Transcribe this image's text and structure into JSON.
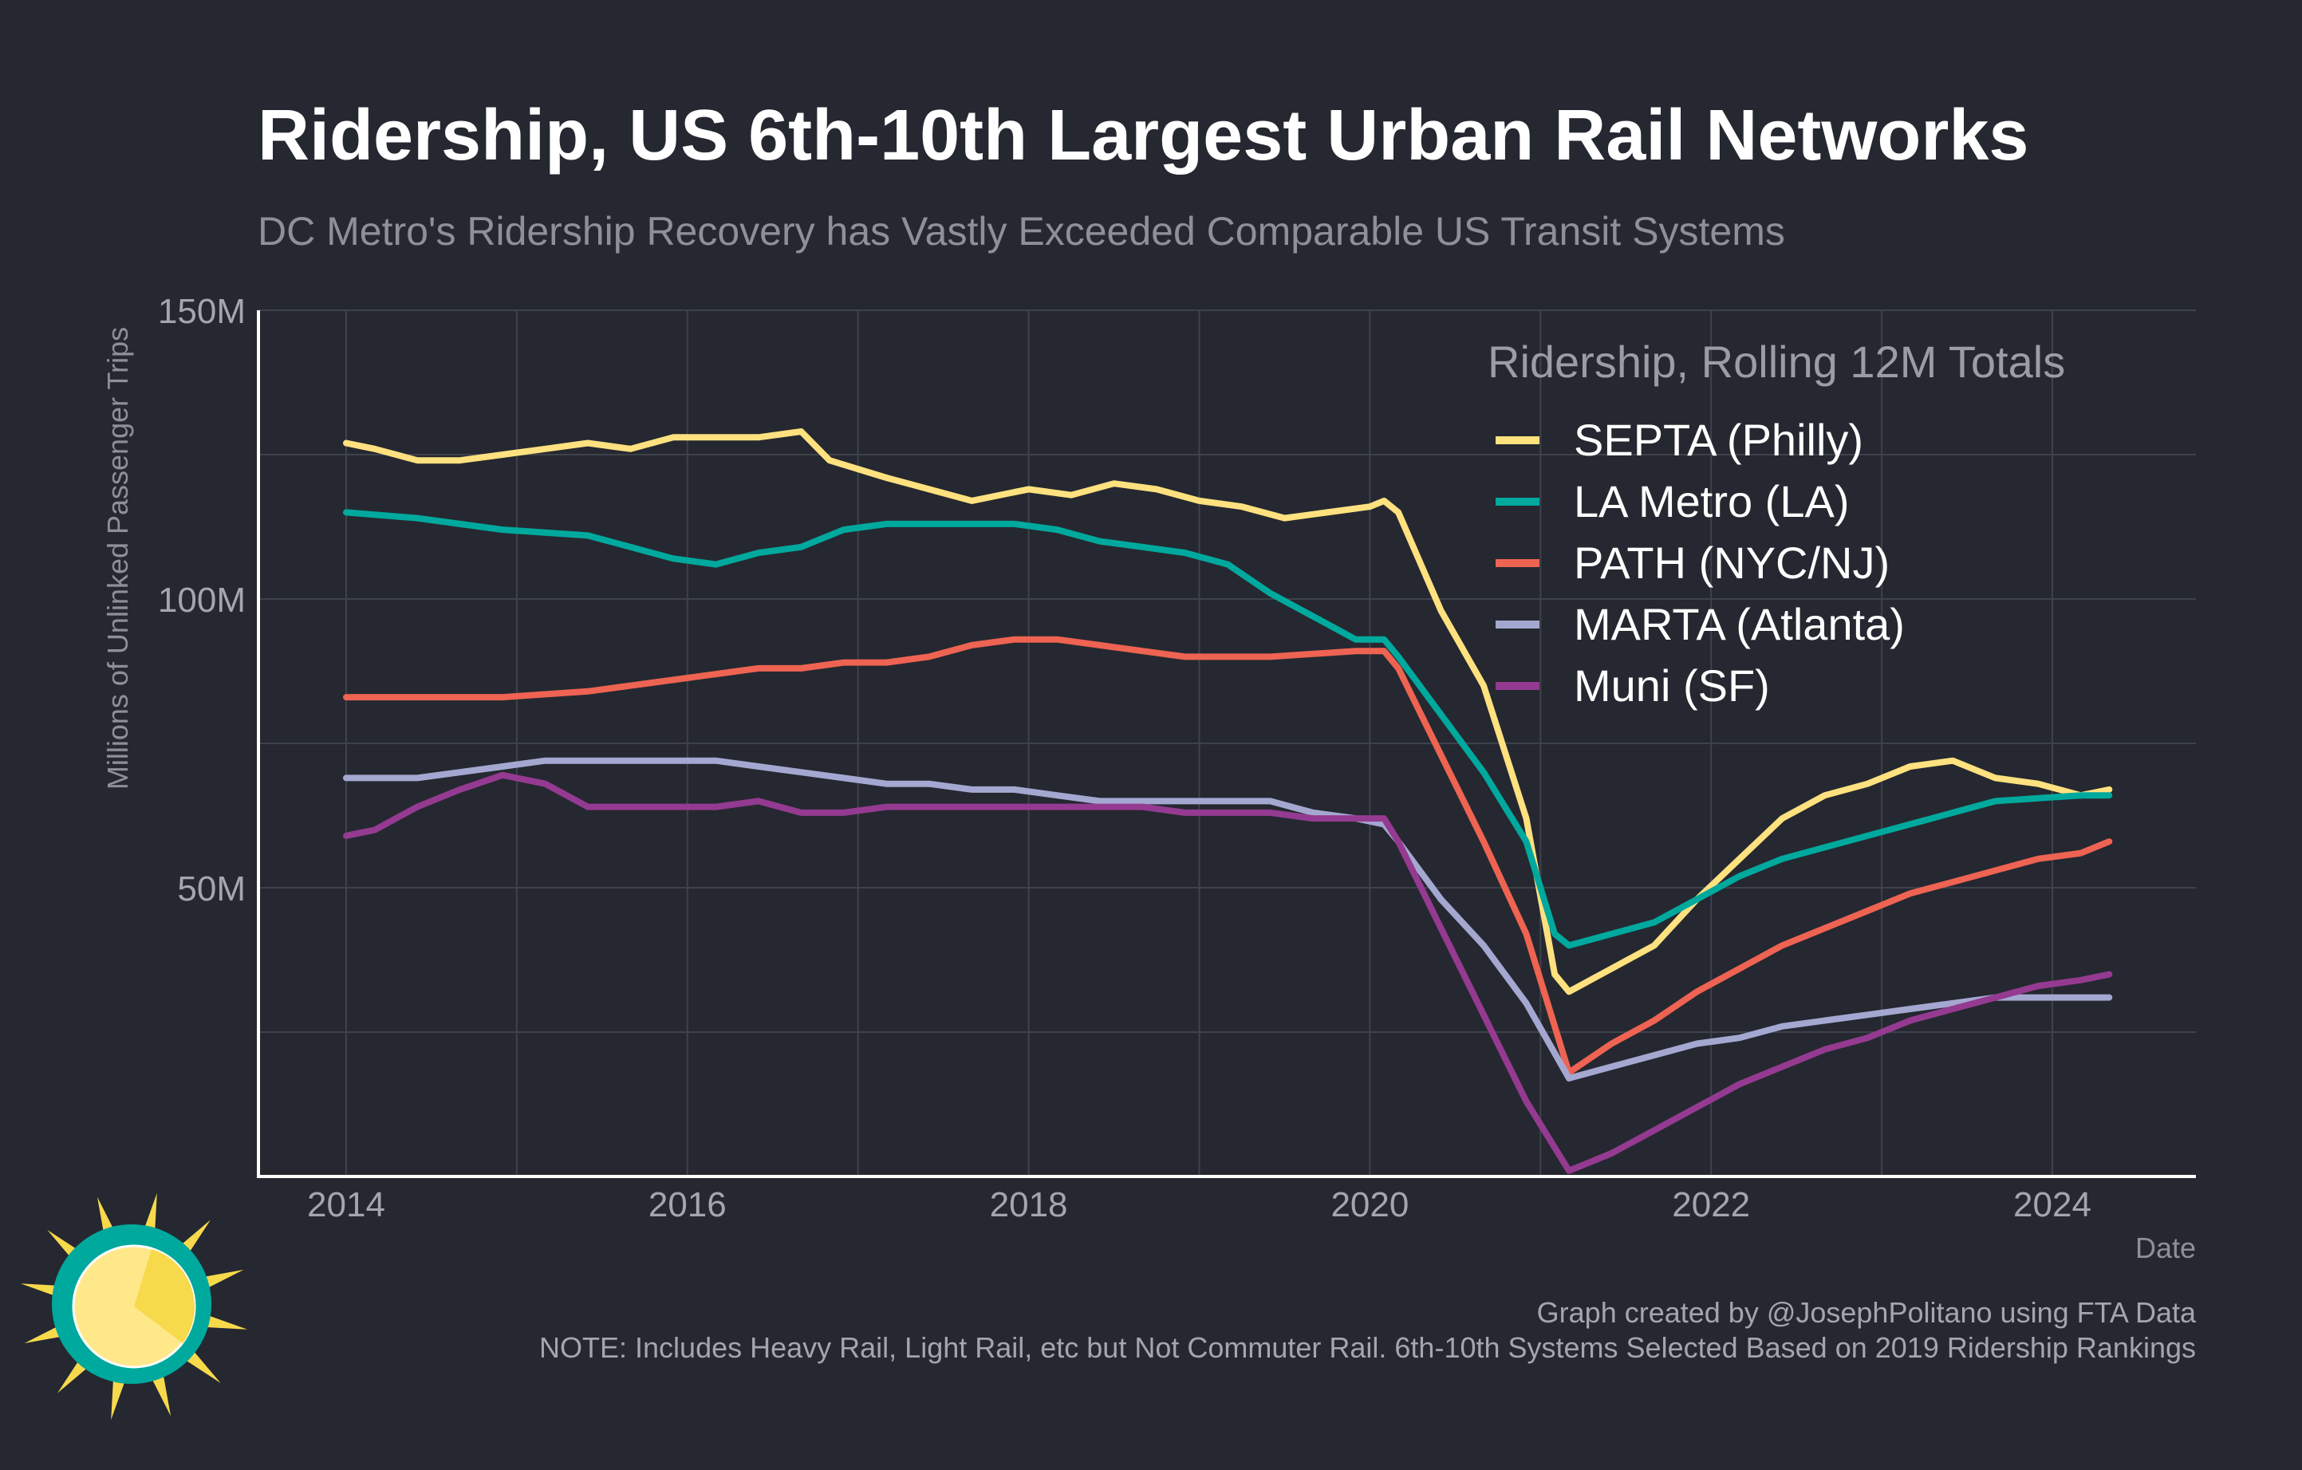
{
  "chart_data": {
    "type": "line",
    "title": "Ridership, US 6th-10th Largest Urban Rail Networks",
    "subtitle": "DC Metro's Ridership Recovery has Vastly Exceeded Comparable US Transit Systems",
    "xlabel": "Date",
    "ylabel": "Millions of Unlinked Passenger Trips",
    "xlim": [
      "2013-06",
      "2024-11"
    ],
    "ylim": [
      0,
      150
    ],
    "x_ticks": [
      "2014",
      "2016",
      "2018",
      "2020",
      "2022",
      "2024"
    ],
    "y_ticks": [
      {
        "value": 50,
        "label": "50M"
      },
      {
        "value": 100,
        "label": "100M"
      },
      {
        "value": 150,
        "label": "150M"
      }
    ],
    "grid": true,
    "legend": {
      "title": "Ridership, Rolling 12M Totals",
      "position": "top-right"
    },
    "series": [
      {
        "name": "SEPTA (Philly)",
        "color": "#ffe17f",
        "points": [
          [
            "2014-01",
            127
          ],
          [
            "2014-03",
            126
          ],
          [
            "2014-06",
            124
          ],
          [
            "2014-09",
            124
          ],
          [
            "2014-12",
            125
          ],
          [
            "2015-03",
            126
          ],
          [
            "2015-06",
            127
          ],
          [
            "2015-09",
            126
          ],
          [
            "2015-12",
            128
          ],
          [
            "2016-03",
            128
          ],
          [
            "2016-06",
            128
          ],
          [
            "2016-09",
            129
          ],
          [
            "2016-11",
            124
          ],
          [
            "2017-03",
            121
          ],
          [
            "2017-06",
            119
          ],
          [
            "2017-09",
            117
          ],
          [
            "2018-01",
            119
          ],
          [
            "2018-04",
            118
          ],
          [
            "2018-07",
            120
          ],
          [
            "2018-10",
            119
          ],
          [
            "2019-01",
            117
          ],
          [
            "2019-04",
            116
          ],
          [
            "2019-07",
            114
          ],
          [
            "2019-10",
            115
          ],
          [
            "2020-01",
            116
          ],
          [
            "2020-02",
            117
          ],
          [
            "2020-03",
            115
          ],
          [
            "2020-06",
            98
          ],
          [
            "2020-09",
            85
          ],
          [
            "2020-12",
            62
          ],
          [
            "2021-02",
            35
          ],
          [
            "2021-03",
            32
          ],
          [
            "2021-06",
            36
          ],
          [
            "2021-09",
            40
          ],
          [
            "2021-12",
            48
          ],
          [
            "2022-03",
            55
          ],
          [
            "2022-06",
            62
          ],
          [
            "2022-09",
            66
          ],
          [
            "2022-12",
            68
          ],
          [
            "2023-03",
            71
          ],
          [
            "2023-06",
            72
          ],
          [
            "2023-09",
            69
          ],
          [
            "2023-12",
            68
          ],
          [
            "2024-03",
            66
          ],
          [
            "2024-05",
            67
          ]
        ]
      },
      {
        "name": "LA Metro (LA)",
        "color": "#00a99d",
        "points": [
          [
            "2014-01",
            115
          ],
          [
            "2014-06",
            114
          ],
          [
            "2014-12",
            112
          ],
          [
            "2015-06",
            111
          ],
          [
            "2015-12",
            107
          ],
          [
            "2016-03",
            106
          ],
          [
            "2016-06",
            108
          ],
          [
            "2016-09",
            109
          ],
          [
            "2016-12",
            112
          ],
          [
            "2017-03",
            113
          ],
          [
            "2017-06",
            113
          ],
          [
            "2017-09",
            113
          ],
          [
            "2017-12",
            113
          ],
          [
            "2018-03",
            112
          ],
          [
            "2018-06",
            110
          ],
          [
            "2018-09",
            109
          ],
          [
            "2018-12",
            108
          ],
          [
            "2019-03",
            106
          ],
          [
            "2019-06",
            101
          ],
          [
            "2019-09",
            97
          ],
          [
            "2019-12",
            93
          ],
          [
            "2020-02",
            93
          ],
          [
            "2020-03",
            90
          ],
          [
            "2020-06",
            80
          ],
          [
            "2020-09",
            70
          ],
          [
            "2020-12",
            58
          ],
          [
            "2021-02",
            42
          ],
          [
            "2021-03",
            40
          ],
          [
            "2021-06",
            42
          ],
          [
            "2021-09",
            44
          ],
          [
            "2021-12",
            48
          ],
          [
            "2022-03",
            52
          ],
          [
            "2022-06",
            55
          ],
          [
            "2022-09",
            57
          ],
          [
            "2022-12",
            59
          ],
          [
            "2023-03",
            61
          ],
          [
            "2023-06",
            63
          ],
          [
            "2023-09",
            65
          ],
          [
            "2023-12",
            65.5
          ],
          [
            "2024-03",
            66
          ],
          [
            "2024-05",
            66
          ]
        ]
      },
      {
        "name": "PATH (NYC/NJ)",
        "color": "#ee6352",
        "points": [
          [
            "2014-01",
            83
          ],
          [
            "2014-06",
            83
          ],
          [
            "2014-12",
            83
          ],
          [
            "2015-06",
            84
          ],
          [
            "2015-12",
            86
          ],
          [
            "2016-03",
            87
          ],
          [
            "2016-06",
            88
          ],
          [
            "2016-09",
            88
          ],
          [
            "2016-12",
            89
          ],
          [
            "2017-03",
            89
          ],
          [
            "2017-06",
            90
          ],
          [
            "2017-09",
            92
          ],
          [
            "2017-12",
            93
          ],
          [
            "2018-03",
            93
          ],
          [
            "2018-06",
            92
          ],
          [
            "2018-09",
            91
          ],
          [
            "2018-12",
            90
          ],
          [
            "2019-06",
            90
          ],
          [
            "2019-12",
            91
          ],
          [
            "2020-02",
            91
          ],
          [
            "2020-03",
            88
          ],
          [
            "2020-06",
            73
          ],
          [
            "2020-09",
            58
          ],
          [
            "2020-12",
            42
          ],
          [
            "2021-03",
            18
          ],
          [
            "2021-06",
            23
          ],
          [
            "2021-09",
            27
          ],
          [
            "2021-12",
            32
          ],
          [
            "2022-03",
            36
          ],
          [
            "2022-06",
            40
          ],
          [
            "2022-09",
            43
          ],
          [
            "2022-12",
            46
          ],
          [
            "2023-03",
            49
          ],
          [
            "2023-06",
            51
          ],
          [
            "2023-09",
            53
          ],
          [
            "2023-12",
            55
          ],
          [
            "2024-03",
            56
          ],
          [
            "2024-05",
            58
          ]
        ]
      },
      {
        "name": "MARTA (Atlanta)",
        "color": "#a4a8d1",
        "points": [
          [
            "2014-01",
            69
          ],
          [
            "2014-06",
            69
          ],
          [
            "2014-12",
            71
          ],
          [
            "2015-03",
            72
          ],
          [
            "2015-06",
            72
          ],
          [
            "2015-09",
            72
          ],
          [
            "2015-12",
            72
          ],
          [
            "2016-03",
            72
          ],
          [
            "2016-06",
            71
          ],
          [
            "2016-09",
            70
          ],
          [
            "2016-12",
            69
          ],
          [
            "2017-03",
            68
          ],
          [
            "2017-06",
            68
          ],
          [
            "2017-09",
            67
          ],
          [
            "2017-12",
            67
          ],
          [
            "2018-03",
            66
          ],
          [
            "2018-06",
            65
          ],
          [
            "2018-09",
            65
          ],
          [
            "2018-12",
            65
          ],
          [
            "2019-03",
            65
          ],
          [
            "2019-06",
            65
          ],
          [
            "2019-09",
            63
          ],
          [
            "2019-12",
            62
          ],
          [
            "2020-02",
            61
          ],
          [
            "2020-03",
            58
          ],
          [
            "2020-06",
            48
          ],
          [
            "2020-09",
            40
          ],
          [
            "2020-12",
            30
          ],
          [
            "2021-03",
            17
          ],
          [
            "2021-06",
            19
          ],
          [
            "2021-09",
            21
          ],
          [
            "2021-12",
            23
          ],
          [
            "2022-03",
            24
          ],
          [
            "2022-06",
            26
          ],
          [
            "2022-09",
            27
          ],
          [
            "2022-12",
            28
          ],
          [
            "2023-03",
            29
          ],
          [
            "2023-06",
            30
          ],
          [
            "2023-09",
            31
          ],
          [
            "2023-12",
            31
          ],
          [
            "2024-03",
            31
          ],
          [
            "2024-05",
            31
          ]
        ]
      },
      {
        "name": "Muni (SF)",
        "color": "#953a91",
        "points": [
          [
            "2014-01",
            59
          ],
          [
            "2014-03",
            60
          ],
          [
            "2014-06",
            64
          ],
          [
            "2014-09",
            67
          ],
          [
            "2014-12",
            69.5
          ],
          [
            "2015-03",
            68
          ],
          [
            "2015-06",
            64
          ],
          [
            "2015-09",
            64
          ],
          [
            "2015-12",
            64
          ],
          [
            "2016-03",
            64
          ],
          [
            "2016-06",
            65
          ],
          [
            "2016-09",
            63
          ],
          [
            "2016-12",
            63
          ],
          [
            "2017-03",
            64
          ],
          [
            "2017-06",
            64
          ],
          [
            "2017-09",
            64
          ],
          [
            "2017-12",
            64
          ],
          [
            "2018-03",
            64
          ],
          [
            "2018-06",
            64
          ],
          [
            "2018-09",
            64
          ],
          [
            "2018-12",
            63
          ],
          [
            "2019-03",
            63
          ],
          [
            "2019-06",
            63
          ],
          [
            "2019-09",
            62
          ],
          [
            "2019-12",
            62
          ],
          [
            "2020-02",
            62
          ],
          [
            "2020-03",
            58
          ],
          [
            "2020-06",
            43
          ],
          [
            "2020-09",
            28
          ],
          [
            "2020-12",
            13
          ],
          [
            "2021-03",
            1
          ],
          [
            "2021-06",
            4
          ],
          [
            "2021-09",
            8
          ],
          [
            "2021-12",
            12
          ],
          [
            "2022-03",
            16
          ],
          [
            "2022-06",
            19
          ],
          [
            "2022-09",
            22
          ],
          [
            "2022-12",
            24
          ],
          [
            "2023-03",
            27
          ],
          [
            "2023-06",
            29
          ],
          [
            "2023-09",
            31
          ],
          [
            "2023-12",
            33
          ],
          [
            "2024-03",
            34
          ],
          [
            "2024-05",
            35
          ]
        ]
      }
    ]
  },
  "footer": {
    "credit": "Graph created by @JosephPolitano using FTA Data",
    "note": "NOTE: Includes Heavy Rail, Light Rail, etc but Not Commuter Rail. 6th-10th Systems Selected Based on 2019 Ridership Rankings"
  },
  "logo": {
    "icon": "sun-logo-icon",
    "colors": [
      "#00a99d",
      "#ffe17f",
      "#f7d94c"
    ]
  }
}
